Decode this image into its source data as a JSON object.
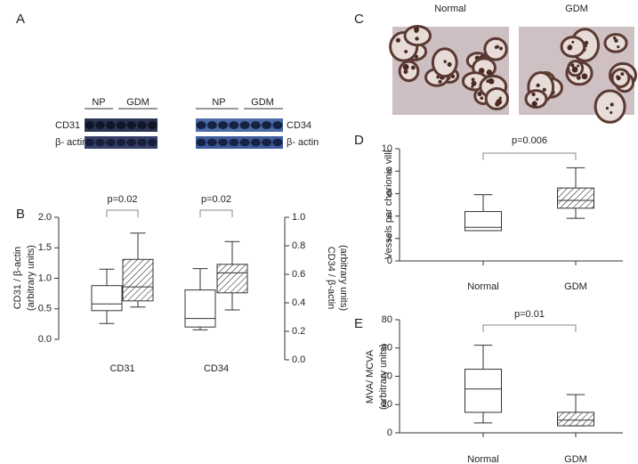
{
  "panel_labels": [
    "A",
    "B",
    "C",
    "D",
    "E"
  ],
  "blots": [
    {
      "groups": [
        "NP",
        "GDM"
      ],
      "rows": [
        "CD31",
        "β- actin"
      ]
    },
    {
      "groups": [
        "NP",
        "GDM"
      ],
      "rows": [
        "CD34",
        "β- actin"
      ]
    }
  ],
  "micrographs": [
    "Normal",
    "GDM"
  ],
  "chart_data": [
    {
      "type": "box",
      "ylabel": [
        "CD31 / β-actin",
        "(arbitrary units)"
      ],
      "y2label": [
        "CD34 / β-actin",
        "(arbitrary units)"
      ],
      "categories": [
        "CD31",
        "CD34"
      ],
      "hatch": [
        false,
        true
      ],
      "series": [
        {
          "axis": "y",
          "boxes": [
            {
              "min": 0.26,
              "q1": 0.47,
              "median": 0.58,
              "q3": 0.88,
              "max": 1.15
            },
            {
              "min": 0.53,
              "q1": 0.63,
              "median": 0.86,
              "q3": 1.31,
              "max": 1.74
            }
          ]
        },
        {
          "axis": "y2",
          "boxes": [
            {
              "min": 0.21,
              "q1": 0.23,
              "median": 0.29,
              "q3": 0.49,
              "max": 0.64
            },
            {
              "min": 0.35,
              "q1": 0.47,
              "median": 0.61,
              "q3": 0.67,
              "max": 0.83
            }
          ]
        }
      ],
      "annotations": [
        "p=0.02",
        "p=0.02"
      ],
      "ylim": [
        0,
        2
      ],
      "yticks": [
        {
          "value": 0,
          "label": "0.0"
        },
        0.5,
        {
          "value": 1,
          "label": "1.0"
        },
        1.5,
        {
          "value": 2,
          "label": "2.0"
        }
      ],
      "y2lim": [
        0,
        1
      ],
      "y2ticks": [
        {
          "value": 0,
          "label": "0.0"
        },
        0.2,
        0.4,
        0.6,
        0.8,
        {
          "value": 1,
          "label": "1.0"
        }
      ]
    },
    {
      "type": "box",
      "ylabel": [
        "Vessels per chorionic villi"
      ],
      "categories": [
        "Normal",
        "GDM"
      ],
      "hatch": [
        false,
        true
      ],
      "series": [
        {
          "axis": "y",
          "boxes": [
            {
              "min": 2.7,
              "q1": 2.7,
              "median": 3.0,
              "q3": 4.4,
              "max": 5.9
            },
            {
              "min": 3.8,
              "q1": 4.7,
              "median": 5.4,
              "q3": 6.5,
              "max": 8.3
            }
          ]
        }
      ],
      "annotations": [
        "p=0.006"
      ],
      "ylim": [
        0,
        10
      ],
      "yticks": [
        0,
        2,
        4,
        6,
        8,
        10
      ]
    },
    {
      "type": "box",
      "ylabel": [
        "MVA/ MCVA",
        "(arbitrary units)"
      ],
      "categories": [
        "Normal",
        "GDM"
      ],
      "hatch": [
        false,
        true
      ],
      "series": [
        {
          "axis": "y",
          "boxes": [
            {
              "min": 7,
              "q1": 14.5,
              "median": 31,
              "q3": 45,
              "max": 62
            },
            {
              "min": 5,
              "q1": 5,
              "median": 9,
              "q3": 14.5,
              "max": 27
            }
          ]
        }
      ],
      "annotations": [
        "p=0.01"
      ],
      "ylim": [
        0,
        80
      ],
      "yticks": [
        0,
        20,
        40,
        60,
        80
      ]
    }
  ]
}
